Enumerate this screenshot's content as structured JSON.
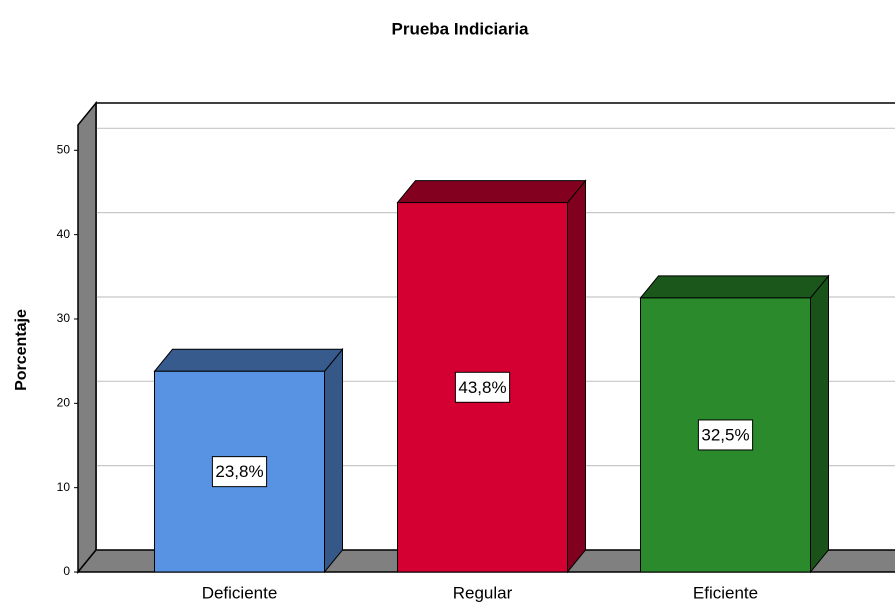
{
  "chart_data": {
    "type": "bar3d",
    "title": "Prueba Indiciaria",
    "y_label": "Porcentaje",
    "categories": [
      "Deficiente",
      "Regular",
      "Eficiente"
    ],
    "values": [
      23.8,
      43.8,
      32.5
    ],
    "value_labels": [
      "23,8%",
      "43,8%",
      "32,5%"
    ],
    "colors": [
      "#5893e3",
      "#d50032",
      "#2b8a2b"
    ],
    "ylim": [
      0,
      53
    ],
    "yticks": [
      0,
      10,
      20,
      30,
      40,
      50
    ],
    "grid": true
  }
}
